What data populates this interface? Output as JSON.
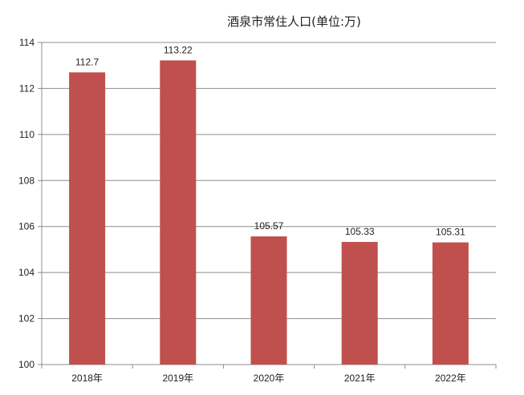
{
  "chart_data": {
    "type": "bar",
    "title": "酒泉市常住人口(单位:万)",
    "categories": [
      "2018年",
      "2019年",
      "2020年",
      "2021年",
      "2022年"
    ],
    "values": [
      112.7,
      113.22,
      105.57,
      105.33,
      105.31
    ],
    "data_labels": [
      "112.7",
      "113.22",
      "105.57",
      "105.33",
      "105.31"
    ],
    "ylim": [
      100,
      114
    ],
    "yticks": [
      "100",
      "102",
      "104",
      "106",
      "108",
      "110",
      "112",
      "114"
    ],
    "xlabel": "",
    "ylabel": "",
    "grid": true,
    "legend": "none",
    "bar_color": "#c0504d"
  }
}
